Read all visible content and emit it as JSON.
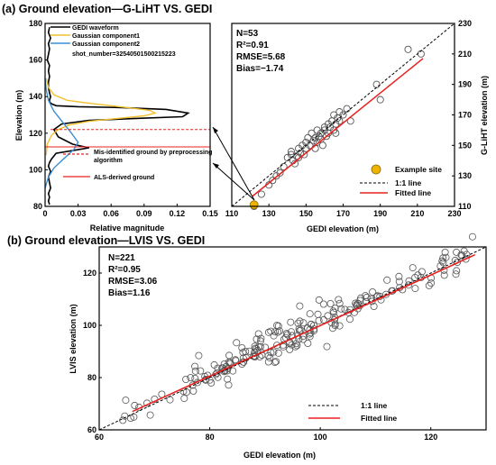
{
  "panel_a": {
    "title": "(a) Ground elevation—G-LiHT VS. GEDI",
    "waveform_legend": [
      "GEDI waveform",
      "Gaussian component1",
      "Gaussian component2"
    ],
    "shot_number": "shot_number=32540501500215223",
    "annotation_legend": [
      "Mis-identified ground by preprocessing algorithm",
      "ALS-derived ground"
    ],
    "stats": [
      "N=53",
      "R²=0.91",
      "RMSE=5.68",
      "Bias=−1.74"
    ],
    "scatter_legend": [
      "Example site",
      "1:1 line",
      "Fitted line"
    ]
  },
  "panel_b": {
    "title": "(b) Ground elevation—LVIS VS. GEDI",
    "stats": [
      "N=221",
      "R²=0.95",
      "RMSE=3.06",
      "Bias=1.16"
    ],
    "legend": [
      "1:1 line",
      "Fitted line"
    ]
  },
  "colors": {
    "waveform": "#000000",
    "gauss1": "#f2c12e",
    "gauss2": "#3b8fd6",
    "fitted": "#e8211f",
    "example_site": "#f0b400",
    "points": "#555555"
  },
  "chart_data": [
    {
      "type": "line",
      "xlabel": "Relative magnitude",
      "ylabel": "Elevation (m)",
      "xlim": [
        0,
        0.15
      ],
      "ylim": [
        80,
        180
      ],
      "xticks": [
        0,
        0.03,
        0.06,
        0.09,
        0.12,
        0.15
      ],
      "xtick_labels": [
        "0",
        "0.03",
        "0.06",
        "0.09",
        "0.12",
        "0.15"
      ],
      "yticks": [
        80,
        100,
        120,
        140,
        160,
        180
      ],
      "series": [
        {
          "name": "GEDI waveform",
          "x": [
            0.004,
            0.003,
            0.005,
            0.003,
            0.004,
            0.003,
            0.002,
            0.004,
            0.003,
            0.004,
            0.003,
            0.003,
            0.004,
            0.005,
            0.004,
            0.004,
            0.006,
            0.01,
            0.03,
            0.07,
            0.11,
            0.13,
            0.125,
            0.08,
            0.04,
            0.015,
            0.008,
            0.012,
            0.025,
            0.04,
            0.03,
            0.01,
            0.006,
            0.004,
            0.003,
            0.005,
            0.003,
            0.004,
            0.005,
            0.003,
            0.004,
            0.003,
            0.004
          ],
          "y": [
            178,
            175,
            172,
            169,
            166,
            163,
            160,
            157,
            154,
            151,
            148,
            145,
            142,
            140,
            138,
            137,
            136,
            135,
            134.5,
            134,
            133,
            131,
            129,
            128,
            127,
            125,
            122,
            118,
            114,
            112,
            111,
            109,
            106,
            104,
            102,
            99,
            96,
            93,
            90,
            87,
            85,
            83,
            81
          ]
        },
        {
          "name": "Gaussian component1",
          "x": [
            0.001,
            0.003,
            0.008,
            0.02,
            0.045,
            0.075,
            0.095,
            0.1,
            0.09,
            0.065,
            0.04,
            0.022,
            0.012,
            0.006,
            0.002,
            0.001
          ],
          "y": [
            150,
            145,
            141,
            138,
            136,
            134,
            132.5,
            131,
            129.5,
            128,
            126.5,
            124.5,
            122,
            119,
            114,
            108
          ]
        },
        {
          "name": "Gaussian component2",
          "x": [
            0.0,
            0.001,
            0.003,
            0.008,
            0.016,
            0.024,
            0.03,
            0.026,
            0.017,
            0.008,
            0.003,
            0.0
          ],
          "y": [
            150,
            144,
            138,
            132,
            126,
            120,
            115,
            111,
            106,
            101,
            96,
            90
          ]
        }
      ],
      "annotations": [
        {
          "label": "Mis-identified ground by preprocessing algorithm",
          "elevation": 122
        },
        {
          "label": "ALS-derived ground",
          "elevation": 112.5
        }
      ]
    },
    {
      "type": "scatter",
      "xlabel": "GEDI elevation (m)",
      "ylabel": "G-LiHT elevation (m)",
      "xlim": [
        110,
        230
      ],
      "ylim": [
        110,
        230
      ],
      "xticks": [
        110,
        130,
        150,
        170,
        190,
        210,
        230
      ],
      "yticks": [
        110,
        130,
        150,
        170,
        190,
        210,
        230
      ],
      "stats": {
        "N": 53,
        "R2": 0.91,
        "RMSE": 5.68,
        "Bias": -1.74
      },
      "points": [
        [
          122,
          110
        ],
        [
          126,
          118
        ],
        [
          130,
          124
        ],
        [
          132,
          127
        ],
        [
          134,
          130
        ],
        [
          136,
          132
        ],
        [
          138,
          136
        ],
        [
          140,
          142
        ],
        [
          142,
          144
        ],
        [
          142,
          146
        ],
        [
          143,
          140
        ],
        [
          144,
          138
        ],
        [
          145,
          143
        ],
        [
          146,
          142
        ],
        [
          146,
          148
        ],
        [
          147,
          145
        ],
        [
          148,
          150
        ],
        [
          149,
          144
        ],
        [
          150,
          148
        ],
        [
          150,
          152
        ],
        [
          151,
          155
        ],
        [
          152,
          150
        ],
        [
          153,
          158
        ],
        [
          154,
          153
        ],
        [
          155,
          148
        ],
        [
          155,
          155
        ],
        [
          156,
          152
        ],
        [
          156,
          160
        ],
        [
          157,
          156
        ],
        [
          158,
          154
        ],
        [
          158,
          158
        ],
        [
          159,
          150
        ],
        [
          160,
          160
        ],
        [
          160,
          162
        ],
        [
          161,
          156
        ],
        [
          162,
          164
        ],
        [
          162,
          158
        ],
        [
          163,
          162
        ],
        [
          164,
          166
        ],
        [
          165,
          160
        ],
        [
          165,
          170
        ],
        [
          166,
          164
        ],
        [
          166,
          158
        ],
        [
          167,
          168
        ],
        [
          168,
          172
        ],
        [
          168,
          166
        ],
        [
          170,
          170
        ],
        [
          172,
          174
        ],
        [
          174,
          166
        ],
        [
          188,
          190
        ],
        [
          190,
          180
        ],
        [
          205,
          213
        ],
        [
          212,
          210
        ]
      ],
      "example_site": [
        122,
        111
      ],
      "fitted_line": {
        "x": [
          121,
          213
        ],
        "y": [
          116.5,
          207
        ]
      },
      "one_to_one": true
    },
    {
      "type": "scatter",
      "xlabel": "GEDI elevation (m)",
      "ylabel": "LVIS elevation (m)",
      "xlim": [
        60,
        130
      ],
      "ylim": [
        60,
        130
      ],
      "xticks": [
        60,
        80,
        100,
        120
      ],
      "yticks": [
        60,
        80,
        100,
        120
      ],
      "stats": {
        "N": 221,
        "R2": 0.95,
        "RMSE": 3.06,
        "Bias": 1.16
      },
      "fitted_line": {
        "x": [
          66,
          128
        ],
        "y": [
          67,
          127
        ]
      },
      "one_to_one": true
    }
  ]
}
